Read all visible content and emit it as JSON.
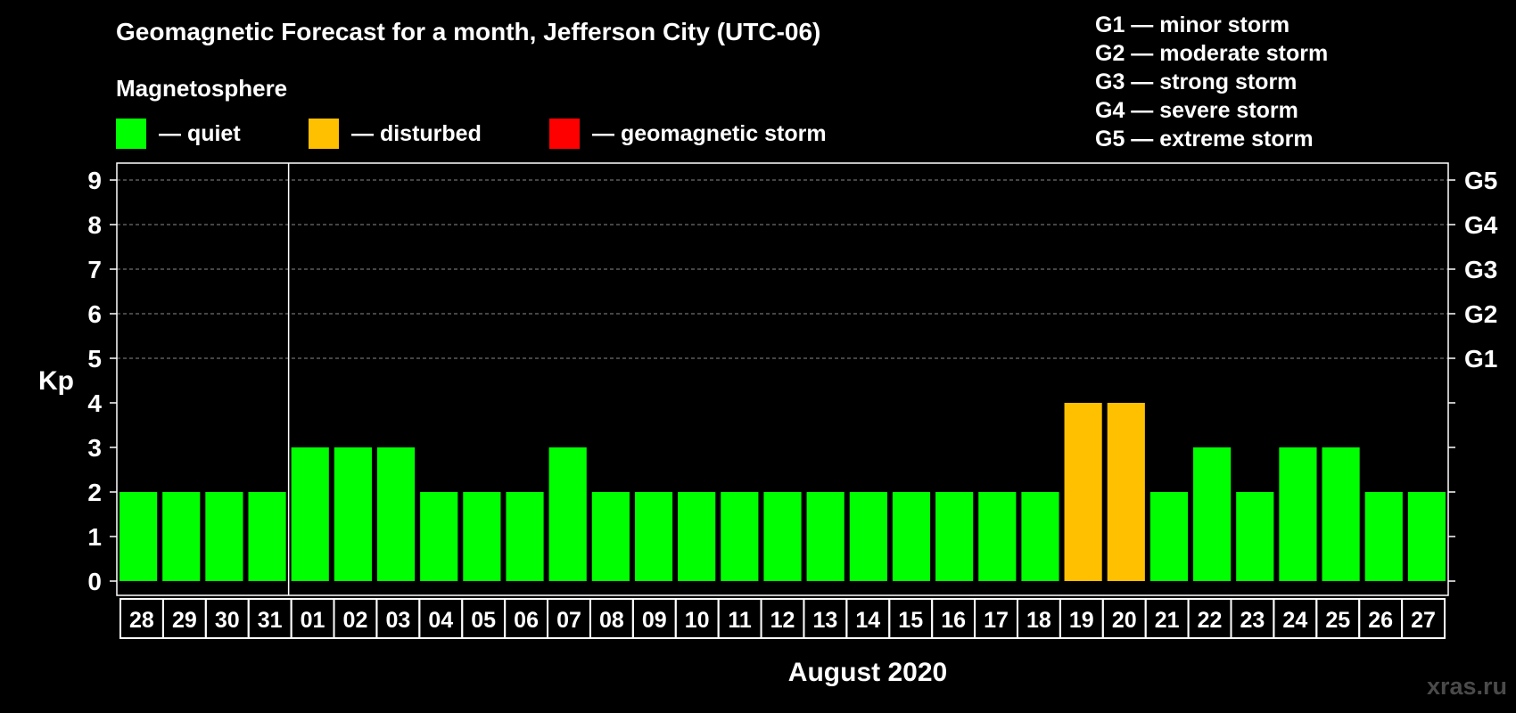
{
  "chart_data": {
    "type": "bar",
    "title": "Geomagnetic Forecast for a month, Jefferson City (UTC-06)",
    "subtitle": "Magnetosphere",
    "xlabel": "August 2020",
    "ylabel": "Kp",
    "ylim": [
      0,
      9
    ],
    "yticks": [
      "0",
      "1",
      "2",
      "3",
      "4",
      "5",
      "6",
      "7",
      "8",
      "9"
    ],
    "right_ticks": [
      {
        "kp": 5,
        "label": "G1"
      },
      {
        "kp": 6,
        "label": "G2"
      },
      {
        "kp": 7,
        "label": "G3"
      },
      {
        "kp": 8,
        "label": "G4"
      },
      {
        "kp": 9,
        "label": "G5"
      }
    ],
    "categories": [
      "28",
      "29",
      "30",
      "31",
      "01",
      "02",
      "03",
      "04",
      "05",
      "06",
      "07",
      "08",
      "09",
      "10",
      "11",
      "12",
      "13",
      "14",
      "15",
      "16",
      "17",
      "18",
      "19",
      "20",
      "21",
      "22",
      "23",
      "24",
      "25",
      "26",
      "27"
    ],
    "values": [
      2,
      2,
      2,
      2,
      3,
      3,
      3,
      2,
      2,
      2,
      3,
      2,
      2,
      2,
      2,
      2,
      2,
      2,
      2,
      2,
      2,
      2,
      4,
      4,
      2,
      3,
      2,
      3,
      3,
      2,
      2
    ],
    "month_divider_after": "31",
    "legend": [
      {
        "label": "— quiet",
        "color": "#00ff00"
      },
      {
        "label": "— disturbed",
        "color": "#ffc000"
      },
      {
        "label": "— geomagnetic storm",
        "color": "#ff0000"
      }
    ],
    "storm_scale": [
      "G1 — minor storm",
      "G2 — moderate storm",
      "G3 — strong storm",
      "G4 — severe storm",
      "G5 — extreme storm"
    ]
  },
  "watermark": "xras.ru"
}
